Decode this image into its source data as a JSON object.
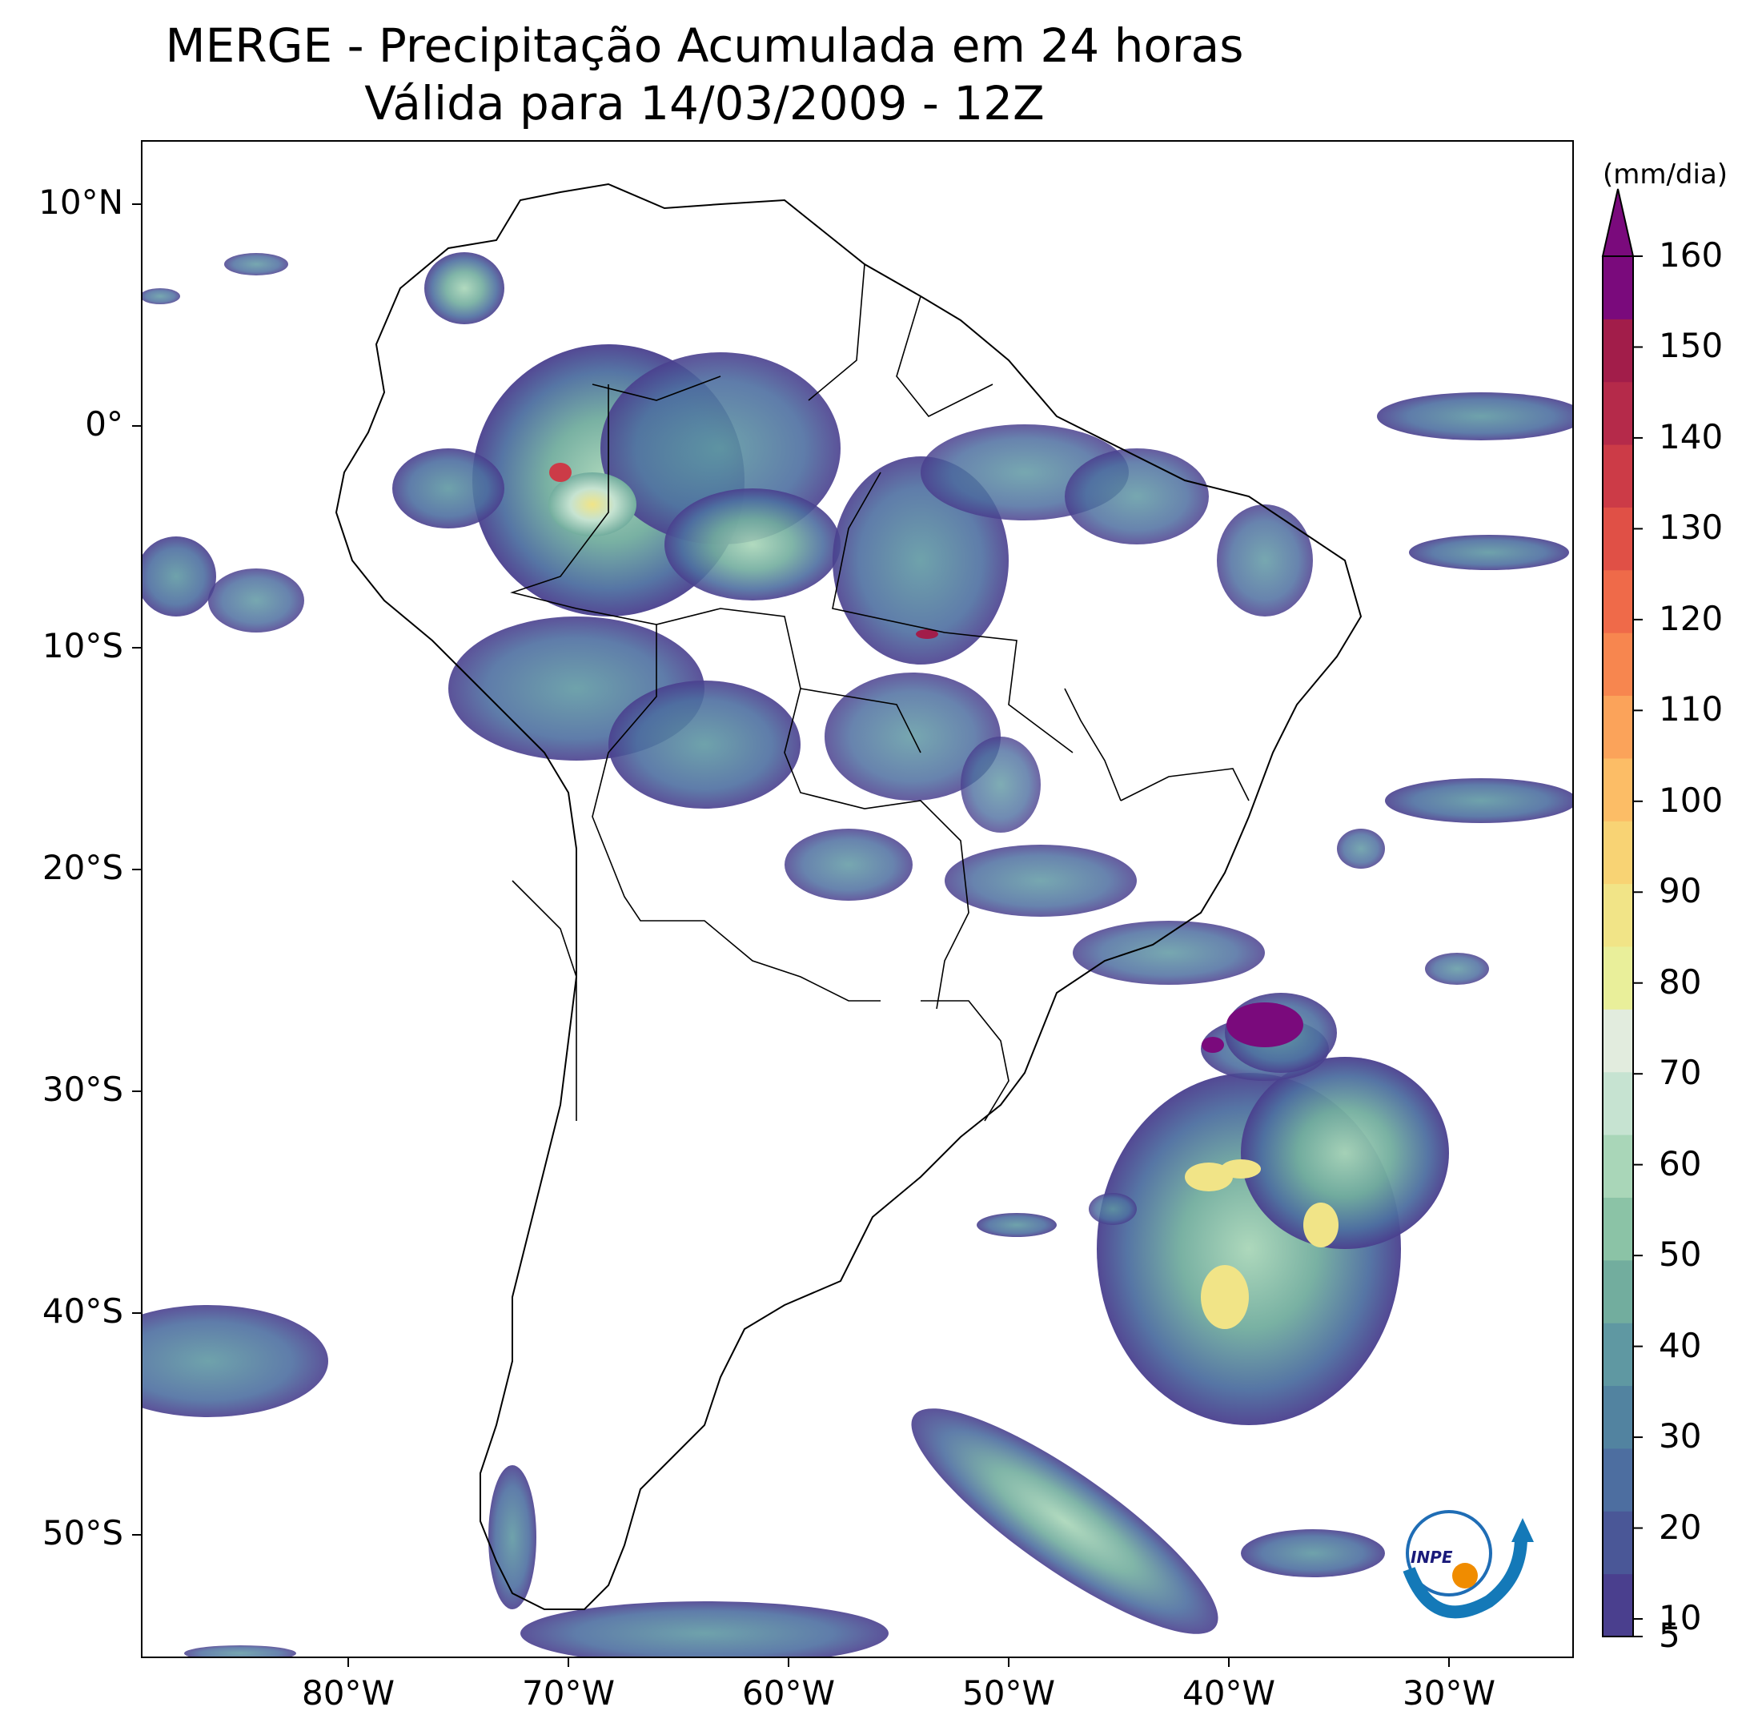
{
  "title": {
    "line1": "MERGE - Precipitação Acumulada em 24 horas",
    "line2": "Válida para 14/03/2009 - 12Z"
  },
  "axes": {
    "lat_labels": [
      "10°N",
      "0°",
      "10°S",
      "20°S",
      "30°S",
      "40°S",
      "50°S"
    ],
    "lon_labels": [
      "80°W",
      "70°W",
      "60°W",
      "50°W",
      "40°W",
      "30°W"
    ]
  },
  "colorbar": {
    "unit": "(mm/dia)",
    "ticks": [
      "160",
      "150",
      "140",
      "130",
      "120",
      "110",
      "100",
      "90",
      "80",
      "70",
      "60",
      "50",
      "40",
      "30",
      "20",
      "10",
      "5"
    ],
    "colors_low_to_high": [
      "#4a3f8e",
      "#4a5797",
      "#4d6ea0",
      "#5283a0",
      "#5f98a2",
      "#72ad9e",
      "#8bc3a6",
      "#a9d6b8",
      "#c6e3d1",
      "#e2ecde",
      "#e9ef9a",
      "#f1e487",
      "#f8d374",
      "#fcbd66",
      "#fba35a",
      "#f7864f",
      "#ef6a49",
      "#e05046",
      "#cc3b47",
      "#b52a4a",
      "#a21d4a",
      "#7a0a7c"
    ],
    "extend_color": "#7a0a7c"
  },
  "logo": {
    "text": "INPE"
  }
}
